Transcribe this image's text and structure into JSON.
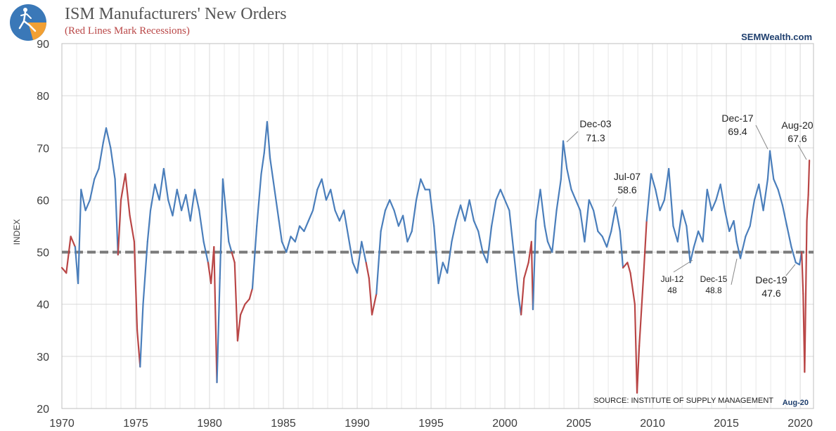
{
  "header": {
    "title": "ISM Manufacturers' New Orders",
    "subtitle": "(Red Lines Mark Recessions)",
    "brand": "SEMWealth.com",
    "source": "SOURCE:  INSTITUTE OF SUPPLY MANAGEMENT",
    "as_of": "Aug-20"
  },
  "colors": {
    "expansion": "#4a7ebb",
    "recession": "#b94646",
    "reference": "#7a7a7a",
    "grid": "#d9d9d9",
    "title": "#555555",
    "subtitle": "#b94646",
    "brand": "#1f3f6e",
    "logo_bg": "#3a78b8",
    "logo_accent": "#f2a033"
  },
  "chart_data": {
    "type": "line",
    "title": "ISM Manufacturers' New Orders",
    "ylabel": "INDEX",
    "xlabel": "",
    "ylim": [
      20,
      90
    ],
    "xlim": [
      1970,
      2020.9
    ],
    "yticks": [
      20,
      30,
      40,
      50,
      60,
      70,
      80,
      90
    ],
    "xticks": [
      1970,
      1975,
      1980,
      1985,
      1990,
      1995,
      2000,
      2005,
      2010,
      2015,
      2020
    ],
    "grid": true,
    "reference_line": 50,
    "series": [
      {
        "points": [
          [
            1970.0,
            47
          ],
          [
            1970.3,
            46
          ],
          [
            1970.6,
            53
          ],
          [
            1970.9,
            51
          ],
          [
            1971.1,
            44
          ],
          [
            1971.3,
            62
          ],
          [
            1971.6,
            58
          ],
          [
            1971.9,
            60
          ],
          [
            1972.2,
            64
          ],
          [
            1972.5,
            66
          ],
          [
            1972.8,
            71
          ],
          [
            1973.0,
            73.8
          ],
          [
            1973.3,
            70
          ],
          [
            1973.6,
            64
          ],
          [
            1973.8,
            49.5
          ],
          [
            1974.0,
            60
          ],
          [
            1974.3,
            65
          ],
          [
            1974.6,
            57
          ],
          [
            1974.9,
            52
          ],
          [
            1975.1,
            35
          ],
          [
            1975.3,
            28
          ],
          [
            1975.5,
            40
          ],
          [
            1975.8,
            52
          ],
          [
            1976.0,
            58
          ],
          [
            1976.3,
            63
          ],
          [
            1976.6,
            60
          ],
          [
            1976.9,
            66
          ],
          [
            1977.2,
            60
          ],
          [
            1977.5,
            57
          ],
          [
            1977.8,
            62
          ],
          [
            1978.1,
            58
          ],
          [
            1978.4,
            61
          ],
          [
            1978.7,
            56
          ],
          [
            1979.0,
            62
          ],
          [
            1979.3,
            58
          ],
          [
            1979.6,
            52
          ],
          [
            1979.9,
            48
          ],
          [
            1980.1,
            44
          ],
          [
            1980.3,
            51
          ],
          [
            1980.5,
            25
          ],
          [
            1980.7,
            45
          ],
          [
            1980.9,
            64
          ],
          [
            1981.1,
            58
          ],
          [
            1981.3,
            52
          ],
          [
            1981.5,
            50
          ],
          [
            1981.7,
            48
          ],
          [
            1981.9,
            33
          ],
          [
            1982.1,
            38
          ],
          [
            1982.4,
            40
          ],
          [
            1982.7,
            41
          ],
          [
            1982.9,
            43
          ],
          [
            1983.2,
            55
          ],
          [
            1983.5,
            65
          ],
          [
            1983.7,
            69
          ],
          [
            1983.9,
            75
          ],
          [
            1984.1,
            68
          ],
          [
            1984.4,
            62
          ],
          [
            1984.7,
            56
          ],
          [
            1984.9,
            52
          ],
          [
            1985.2,
            50
          ],
          [
            1985.5,
            53
          ],
          [
            1985.8,
            52
          ],
          [
            1986.1,
            55
          ],
          [
            1986.4,
            54
          ],
          [
            1986.7,
            56
          ],
          [
            1987.0,
            58
          ],
          [
            1987.3,
            62
          ],
          [
            1987.6,
            64
          ],
          [
            1987.9,
            60
          ],
          [
            1988.2,
            62
          ],
          [
            1988.5,
            58
          ],
          [
            1988.8,
            56
          ],
          [
            1989.1,
            58
          ],
          [
            1989.4,
            53
          ],
          [
            1989.7,
            48
          ],
          [
            1990.0,
            46
          ],
          [
            1990.3,
            52
          ],
          [
            1990.6,
            48
          ],
          [
            1990.8,
            45
          ],
          [
            1991.0,
            38
          ],
          [
            1991.3,
            42
          ],
          [
            1991.6,
            54
          ],
          [
            1991.9,
            58
          ],
          [
            1992.2,
            60
          ],
          [
            1992.5,
            58
          ],
          [
            1992.8,
            55
          ],
          [
            1993.1,
            57
          ],
          [
            1993.4,
            52
          ],
          [
            1993.7,
            54
          ],
          [
            1994.0,
            60
          ],
          [
            1994.3,
            64
          ],
          [
            1994.6,
            62
          ],
          [
            1994.9,
            62
          ],
          [
            1995.2,
            55
          ],
          [
            1995.5,
            44
          ],
          [
            1995.8,
            48
          ],
          [
            1996.1,
            46
          ],
          [
            1996.4,
            52
          ],
          [
            1996.7,
            56
          ],
          [
            1997.0,
            59
          ],
          [
            1997.3,
            56
          ],
          [
            1997.6,
            60
          ],
          [
            1997.9,
            56
          ],
          [
            1998.2,
            54
          ],
          [
            1998.5,
            50
          ],
          [
            1998.8,
            48
          ],
          [
            1999.1,
            55
          ],
          [
            1999.4,
            60
          ],
          [
            1999.7,
            62
          ],
          [
            2000.0,
            60
          ],
          [
            2000.3,
            58
          ],
          [
            2000.6,
            50
          ],
          [
            2000.9,
            42
          ],
          [
            2001.1,
            38
          ],
          [
            2001.3,
            45
          ],
          [
            2001.6,
            48
          ],
          [
            2001.8,
            52
          ],
          [
            2001.9,
            39
          ],
          [
            2002.1,
            56
          ],
          [
            2002.4,
            62
          ],
          [
            2002.7,
            55
          ],
          [
            2002.9,
            52
          ],
          [
            2003.2,
            50
          ],
          [
            2003.5,
            58
          ],
          [
            2003.8,
            64
          ],
          [
            2003.95,
            71.3
          ],
          [
            2004.2,
            66
          ],
          [
            2004.5,
            62
          ],
          [
            2004.8,
            60
          ],
          [
            2005.1,
            58
          ],
          [
            2005.4,
            52
          ],
          [
            2005.7,
            60
          ],
          [
            2006.0,
            58
          ],
          [
            2006.3,
            54
          ],
          [
            2006.6,
            53
          ],
          [
            2006.9,
            51
          ],
          [
            2007.2,
            54
          ],
          [
            2007.5,
            58.6
          ],
          [
            2007.8,
            54
          ],
          [
            2008.0,
            47
          ],
          [
            2008.3,
            48
          ],
          [
            2008.5,
            46
          ],
          [
            2008.8,
            40
          ],
          [
            2008.95,
            23
          ],
          [
            2009.1,
            32
          ],
          [
            2009.4,
            46
          ],
          [
            2009.6,
            56
          ],
          [
            2009.9,
            65
          ],
          [
            2010.2,
            62
          ],
          [
            2010.5,
            58
          ],
          [
            2010.8,
            60
          ],
          [
            2011.1,
            66
          ],
          [
            2011.4,
            55
          ],
          [
            2011.7,
            52
          ],
          [
            2012.0,
            58
          ],
          [
            2012.3,
            55
          ],
          [
            2012.55,
            48
          ],
          [
            2012.8,
            51
          ],
          [
            2013.1,
            54
          ],
          [
            2013.4,
            52
          ],
          [
            2013.7,
            62
          ],
          [
            2014.0,
            58
          ],
          [
            2014.3,
            60
          ],
          [
            2014.6,
            63
          ],
          [
            2014.9,
            58
          ],
          [
            2015.2,
            54
          ],
          [
            2015.5,
            56
          ],
          [
            2015.7,
            52
          ],
          [
            2015.95,
            48.8
          ],
          [
            2016.3,
            53
          ],
          [
            2016.6,
            55
          ],
          [
            2016.9,
            60
          ],
          [
            2017.2,
            63
          ],
          [
            2017.5,
            58
          ],
          [
            2017.8,
            64
          ],
          [
            2017.95,
            69.4
          ],
          [
            2018.2,
            64
          ],
          [
            2018.5,
            62
          ],
          [
            2018.8,
            59
          ],
          [
            2019.1,
            55
          ],
          [
            2019.4,
            51
          ],
          [
            2019.7,
            48
          ],
          [
            2019.95,
            47.6
          ],
          [
            2020.1,
            50
          ],
          [
            2020.2,
            42
          ],
          [
            2020.3,
            27
          ],
          [
            2020.45,
            56
          ],
          [
            2020.55,
            61
          ],
          [
            2020.62,
            67.6
          ]
        ]
      }
    ],
    "recessions": [
      [
        1970.0,
        1970.9
      ],
      [
        1973.9,
        1975.2
      ],
      [
        1980.0,
        1980.5
      ],
      [
        1981.5,
        1982.9
      ],
      [
        1990.5,
        1991.2
      ],
      [
        2001.2,
        2001.9
      ],
      [
        2007.95,
        2009.5
      ],
      [
        2020.15,
        2020.62
      ]
    ],
    "annotations": [
      {
        "label": "Dec-03",
        "value": "71.3"
      },
      {
        "label": "Jul-07",
        "value": "58.6"
      },
      {
        "label": "Dec-17",
        "value": "69.4"
      },
      {
        "label": "Aug-20",
        "value": "67.6"
      },
      {
        "label": "Jul-12",
        "value": "48"
      },
      {
        "label": "Dec-15",
        "value": "48.8"
      },
      {
        "label": "Dec-19",
        "value": "47.6"
      }
    ]
  }
}
